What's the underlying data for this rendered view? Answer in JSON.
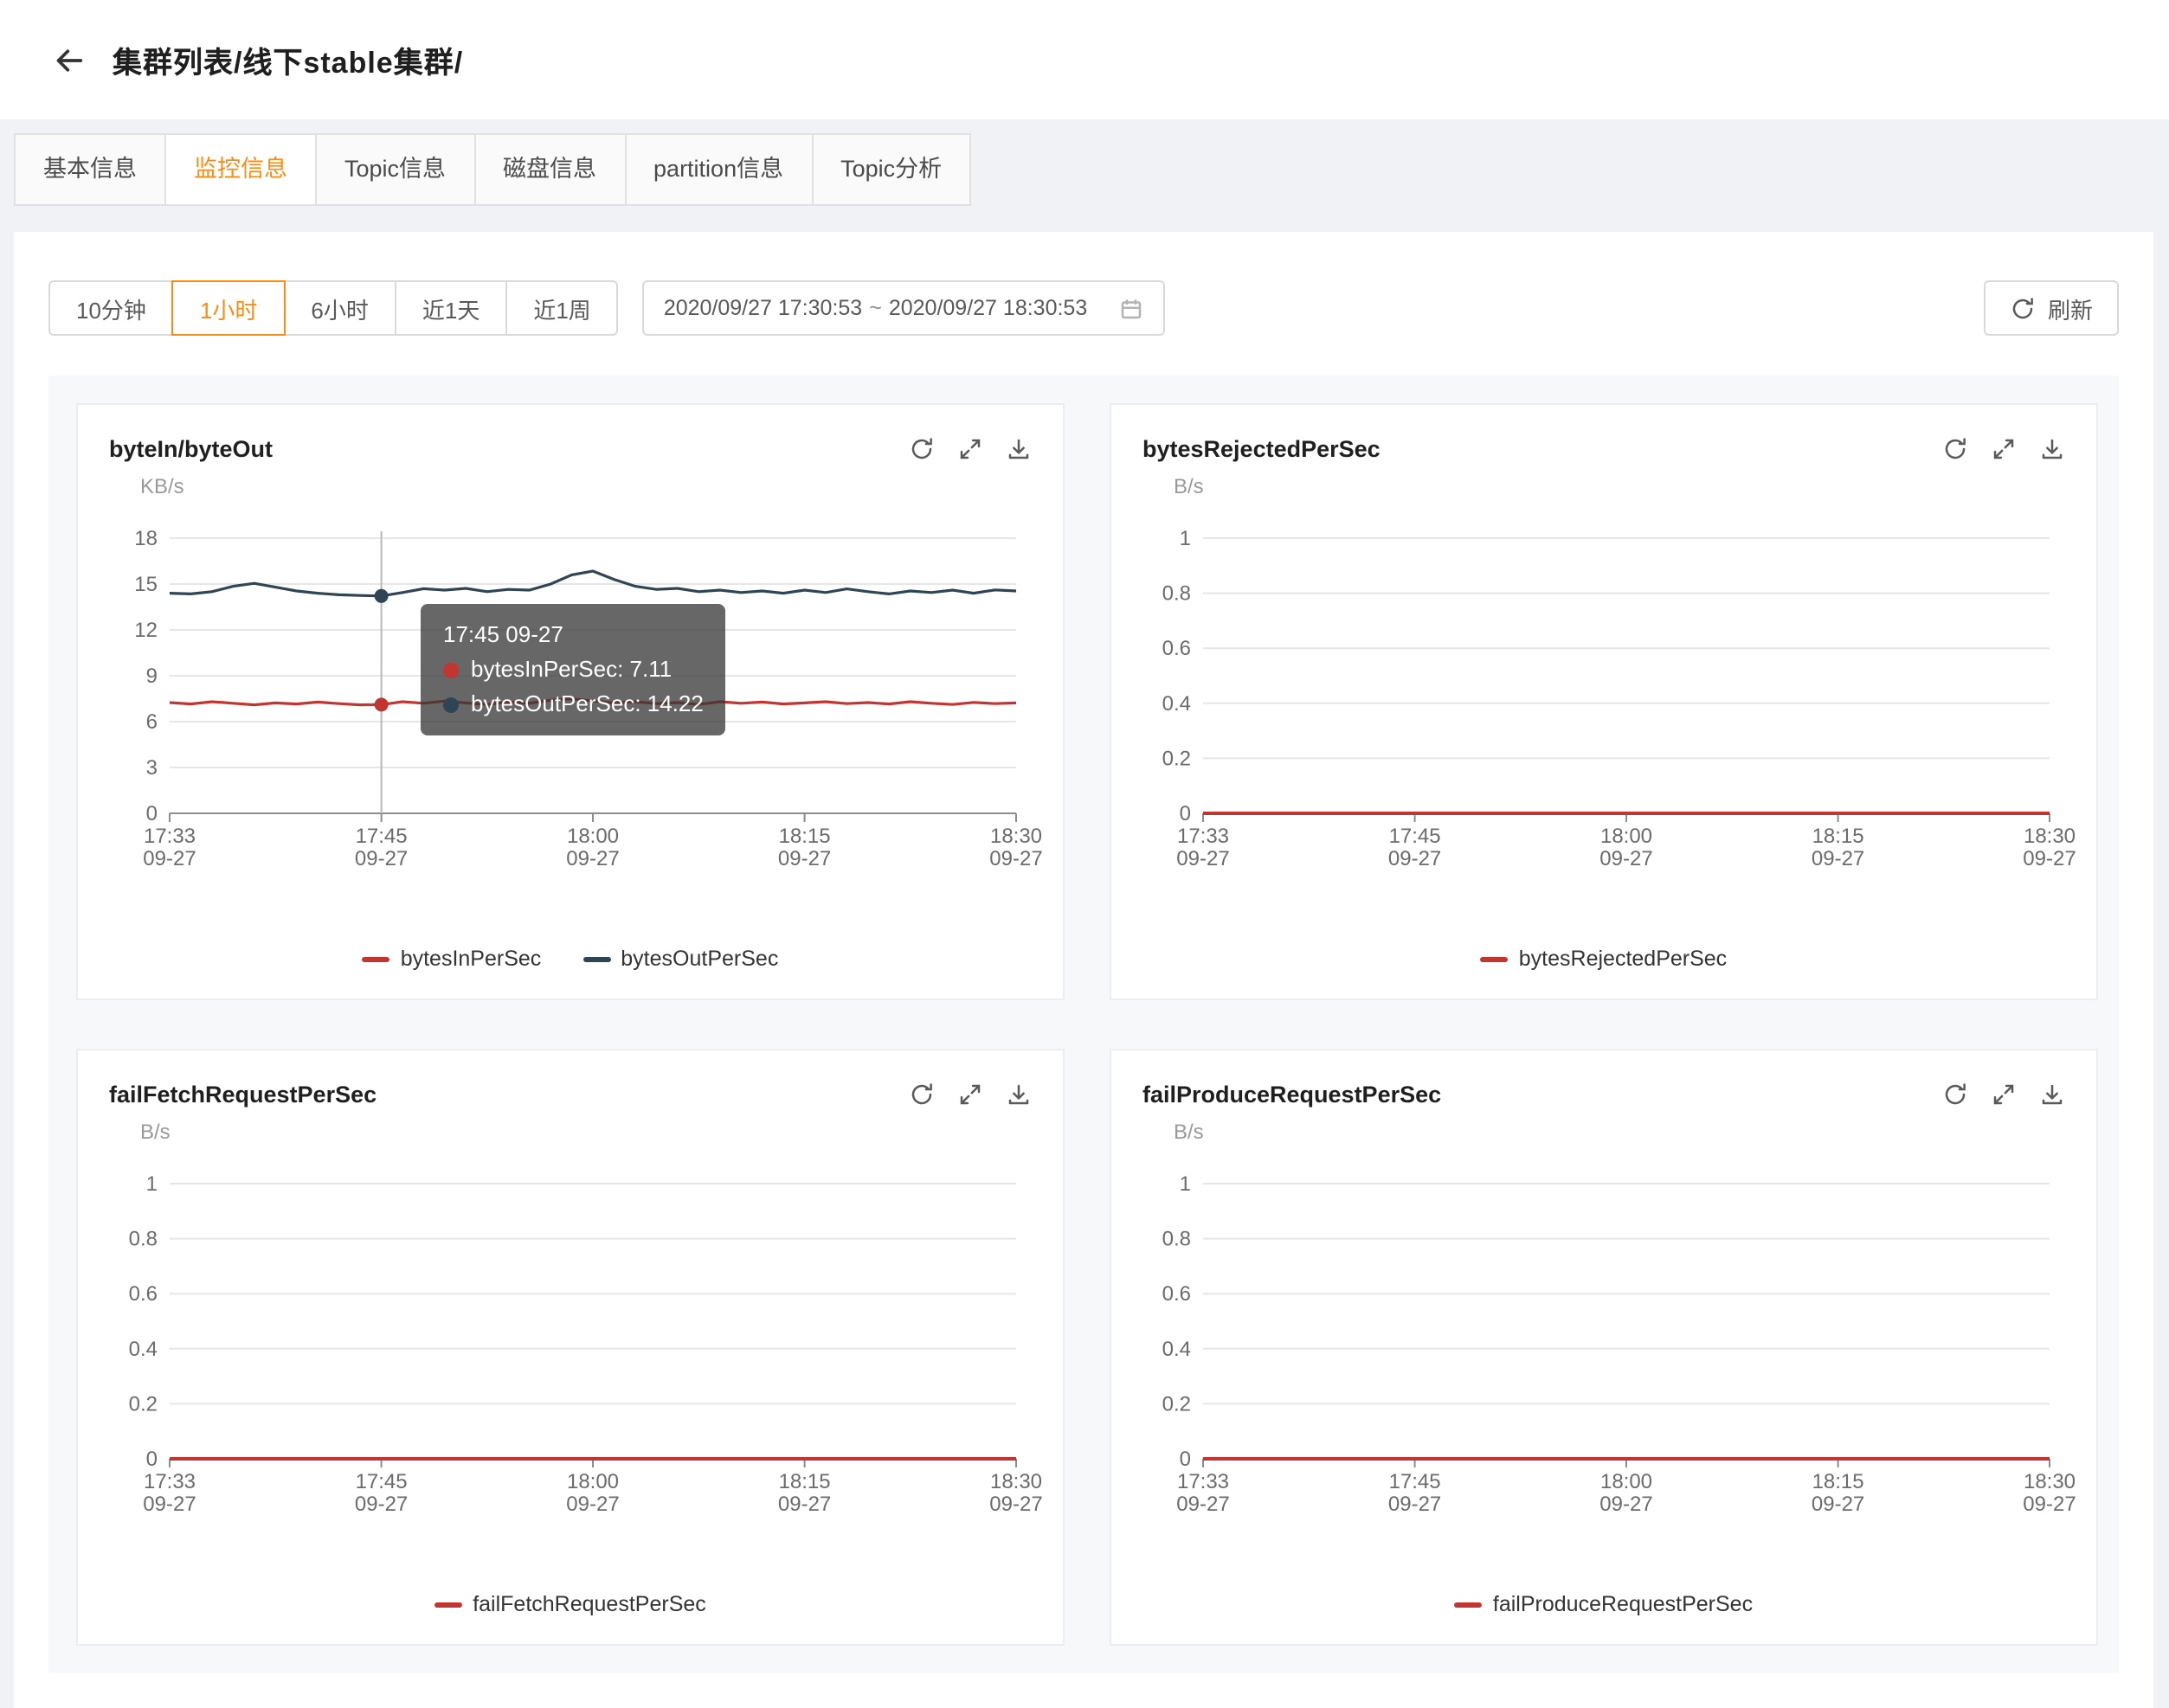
{
  "header": {
    "breadcrumb": "集群列表/线下stable集群/"
  },
  "tabs": [
    {
      "label": "基本信息",
      "active": false
    },
    {
      "label": "监控信息",
      "active": true
    },
    {
      "label": "Topic信息",
      "active": false
    },
    {
      "label": "磁盘信息",
      "active": false
    },
    {
      "label": "partition信息",
      "active": false
    },
    {
      "label": "Topic分析",
      "active": false
    }
  ],
  "time_controls": {
    "ranges": [
      {
        "label": "10分钟",
        "active": false
      },
      {
        "label": "1小时",
        "active": true
      },
      {
        "label": "6小时",
        "active": false
      },
      {
        "label": "近1天",
        "active": false
      },
      {
        "label": "近1周",
        "active": false
      }
    ],
    "date_start": "2020/09/27 17:30:53",
    "date_separator": "~",
    "date_end": "2020/09/27 18:30:53",
    "refresh_label": "刷新"
  },
  "icons": {
    "back": "arrow-left",
    "calendar": "calendar",
    "refresh_button": "reload",
    "chart_toolbar": [
      "reload",
      "fullscreen",
      "download"
    ]
  },
  "colors": {
    "accent": "#fa8c16",
    "series_red": "#c23531",
    "series_navy": "#2f4554"
  },
  "chart_data": [
    {
      "id": "byteIn-byteOut",
      "type": "line",
      "title": "byteIn/byteOut",
      "unit": "KB/s",
      "ylim": [
        0,
        18
      ],
      "yticks": [
        0,
        3,
        6,
        9,
        12,
        15,
        18
      ],
      "xticks": [
        {
          "pos": 0,
          "label": "17:33",
          "sub": "09-27"
        },
        {
          "pos": 0.25,
          "label": "17:45",
          "sub": "09-27"
        },
        {
          "pos": 0.5,
          "label": "18:00",
          "sub": "09-27"
        },
        {
          "pos": 0.75,
          "label": "18:15",
          "sub": "09-27"
        },
        {
          "pos": 1,
          "label": "18:30",
          "sub": "09-27"
        }
      ],
      "series": [
        {
          "name": "bytesInPerSec",
          "color": "#c23531",
          "values": [
            7.25,
            7.15,
            7.3,
            7.2,
            7.1,
            7.22,
            7.15,
            7.28,
            7.18,
            7.1,
            7.11,
            7.3,
            7.2,
            7.35,
            7.22,
            7.12,
            7.28,
            7.2,
            7.4,
            7.5,
            7.35,
            7.22,
            7.3,
            7.18,
            7.25,
            7.12,
            7.3,
            7.2,
            7.28,
            7.15,
            7.22,
            7.3,
            7.18,
            7.25,
            7.15,
            7.3,
            7.2,
            7.12,
            7.26,
            7.18,
            7.22
          ]
        },
        {
          "name": "bytesOutPerSec",
          "color": "#2f4554",
          "values": [
            14.4,
            14.35,
            14.5,
            14.85,
            15.05,
            14.8,
            14.55,
            14.4,
            14.3,
            14.25,
            14.22,
            14.45,
            14.7,
            14.6,
            14.72,
            14.5,
            14.65,
            14.6,
            15.0,
            15.6,
            15.85,
            15.3,
            14.85,
            14.65,
            14.72,
            14.5,
            14.6,
            14.45,
            14.55,
            14.4,
            14.6,
            14.45,
            14.68,
            14.5,
            14.35,
            14.55,
            14.45,
            14.6,
            14.4,
            14.62,
            14.55
          ]
        }
      ],
      "crosshair": {
        "x": 0.25
      },
      "markers": [
        {
          "x": 0.25,
          "y": 7.11,
          "color": "#c23531"
        },
        {
          "x": 0.25,
          "y": 14.22,
          "color": "#2f4554"
        }
      ],
      "tooltip": {
        "left": 180,
        "top": 78,
        "title": "17:45 09-27",
        "rows": [
          {
            "color": "#c23531",
            "text": "bytesInPerSec: 7.11"
          },
          {
            "color": "#2f4554",
            "text": "bytesOutPerSec: 14.22"
          }
        ]
      }
    },
    {
      "id": "bytesRejectedPerSec",
      "type": "line",
      "title": "bytesRejectedPerSec",
      "unit": "B/s",
      "ylim": [
        0,
        1
      ],
      "yticks": [
        0,
        0.2,
        0.4,
        0.6,
        0.8,
        1
      ],
      "xticks": [
        {
          "pos": 0,
          "label": "17:33",
          "sub": "09-27"
        },
        {
          "pos": 0.25,
          "label": "17:45",
          "sub": "09-27"
        },
        {
          "pos": 0.5,
          "label": "18:00",
          "sub": "09-27"
        },
        {
          "pos": 0.75,
          "label": "18:15",
          "sub": "09-27"
        },
        {
          "pos": 1,
          "label": "18:30",
          "sub": "09-27"
        }
      ],
      "series": [
        {
          "name": "bytesRejectedPerSec",
          "color": "#c23531",
          "values": [
            0,
            0
          ]
        }
      ]
    },
    {
      "id": "failFetchRequestPerSec",
      "type": "line",
      "title": "failFetchRequestPerSec",
      "unit": "B/s",
      "ylim": [
        0,
        1
      ],
      "yticks": [
        0,
        0.2,
        0.4,
        0.6,
        0.8,
        1
      ],
      "xticks": [
        {
          "pos": 0,
          "label": "17:33",
          "sub": "09-27"
        },
        {
          "pos": 0.25,
          "label": "17:45",
          "sub": "09-27"
        },
        {
          "pos": 0.5,
          "label": "18:00",
          "sub": "09-27"
        },
        {
          "pos": 0.75,
          "label": "18:15",
          "sub": "09-27"
        },
        {
          "pos": 1,
          "label": "18:30",
          "sub": "09-27"
        }
      ],
      "series": [
        {
          "name": "failFetchRequestPerSec",
          "color": "#c23531",
          "values": [
            0,
            0
          ]
        }
      ]
    },
    {
      "id": "failProduceRequestPerSec",
      "type": "line",
      "title": "failProduceRequestPerSec",
      "unit": "B/s",
      "ylim": [
        0,
        1
      ],
      "yticks": [
        0,
        0.2,
        0.4,
        0.6,
        0.8,
        1
      ],
      "xticks": [
        {
          "pos": 0,
          "label": "17:33",
          "sub": "09-27"
        },
        {
          "pos": 0.25,
          "label": "17:45",
          "sub": "09-27"
        },
        {
          "pos": 0.5,
          "label": "18:00",
          "sub": "09-27"
        },
        {
          "pos": 0.75,
          "label": "18:15",
          "sub": "09-27"
        },
        {
          "pos": 1,
          "label": "18:30",
          "sub": "09-27"
        }
      ],
      "series": [
        {
          "name": "failProduceRequestPerSec",
          "color": "#c23531",
          "values": [
            0,
            0
          ]
        }
      ]
    }
  ]
}
